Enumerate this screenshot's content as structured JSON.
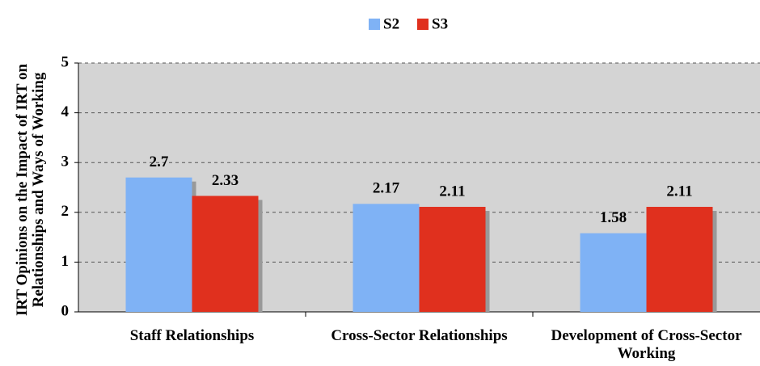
{
  "chart_data": {
    "type": "bar",
    "y_label": "IRT Opinions on the Impact of IRT on Relationships and Ways of Working",
    "categories": [
      "Staff Relationships",
      "Cross-Sector Relationships",
      "Development of Cross-Sector Working"
    ],
    "series": [
      {
        "name": "S2",
        "color": "#7fb2f5",
        "values": [
          2.7,
          2.17,
          1.58
        ]
      },
      {
        "name": "S3",
        "color": "#e0301e",
        "values": [
          2.33,
          2.11,
          2.11
        ]
      }
    ],
    "ylim": [
      0,
      5
    ],
    "yticks": [
      0,
      1,
      2,
      3,
      4,
      5
    ],
    "grid": true,
    "legend": "top"
  }
}
